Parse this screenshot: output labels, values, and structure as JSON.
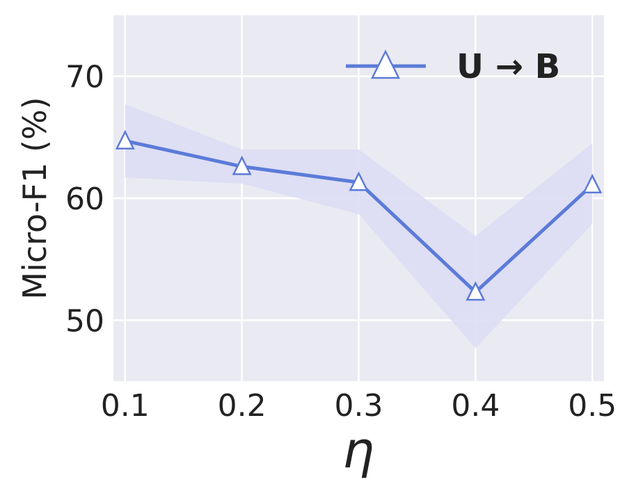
{
  "chart_data": {
    "type": "line",
    "xlabel": "η",
    "ylabel": "Micro-F1 (%)",
    "x": [
      0.1,
      0.2,
      0.3,
      0.4,
      0.5
    ],
    "x_ticks": [
      "0.1",
      "0.2",
      "0.3",
      "0.4",
      "0.5"
    ],
    "xlim": [
      0.09,
      0.51
    ],
    "y_ticks": [
      50,
      60,
      70
    ],
    "ylim": [
      45,
      75
    ],
    "grid": true,
    "legend_position": "top-right",
    "series": [
      {
        "name": "U → B",
        "values": [
          64.7,
          62.6,
          61.3,
          52.3,
          61.1
        ],
        "lower": [
          61.7,
          61.2,
          58.7,
          47.7,
          57.9
        ],
        "upper": [
          67.7,
          64.0,
          64.0,
          56.9,
          64.5
        ],
        "marker": "triangle",
        "color": "#5b7bd8",
        "band_color": "#dcdcf5"
      }
    ]
  }
}
